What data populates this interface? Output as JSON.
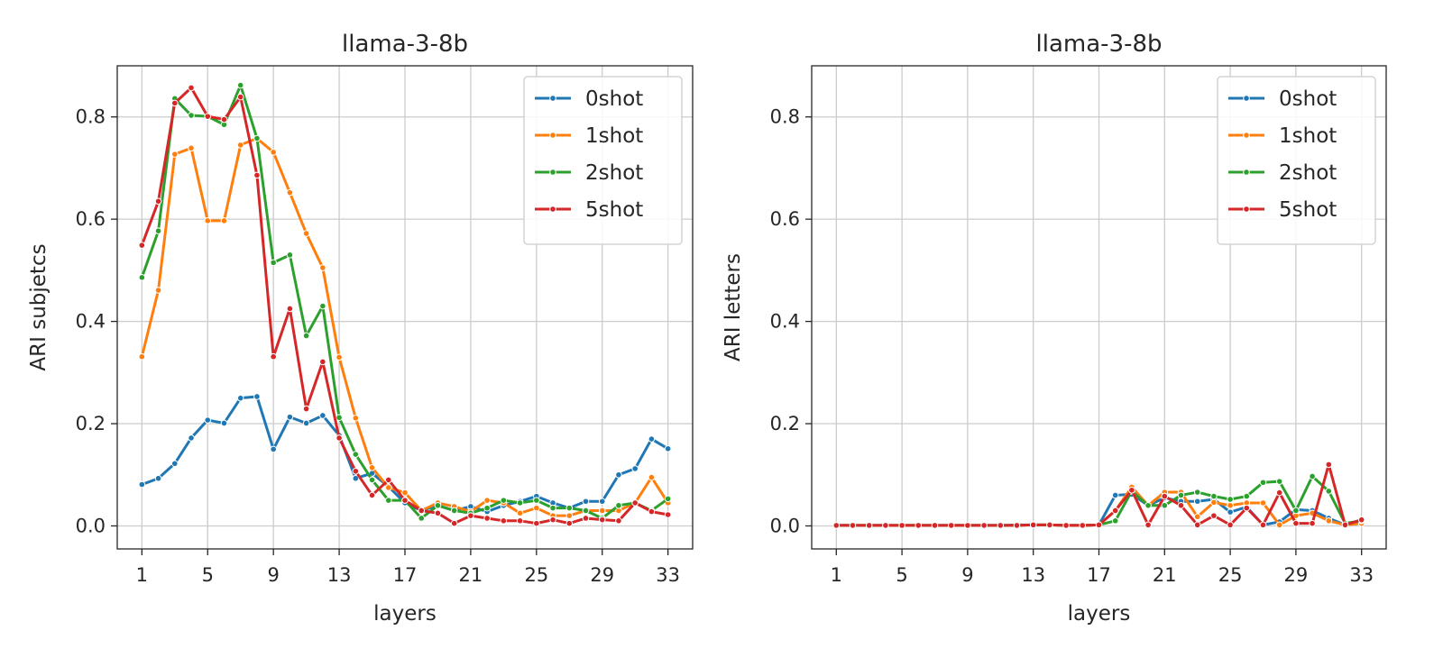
{
  "colors": {
    "0shot": "#1f77b4",
    "1shot": "#ff7f0e",
    "2shot": "#2ca02c",
    "5shot": "#d62728"
  },
  "chart_data": [
    {
      "type": "line",
      "title": "llama-3-8b",
      "xlabel": "layers",
      "ylabel": "ARI subjetcs",
      "xlim": [
        -0.5,
        34.5
      ],
      "ylim": [
        -0.045,
        0.9
      ],
      "xticks": [
        1,
        5,
        9,
        13,
        17,
        21,
        25,
        29,
        33
      ],
      "yticks": [
        "0.0",
        "0.2",
        "0.4",
        "0.6",
        "0.8"
      ],
      "grid": true,
      "legend": "top-right",
      "x": [
        1,
        2,
        3,
        4,
        5,
        6,
        7,
        8,
        9,
        10,
        11,
        12,
        13,
        14,
        15,
        16,
        17,
        18,
        19,
        20,
        21,
        22,
        23,
        24,
        25,
        26,
        27,
        28,
        29,
        30,
        31,
        32,
        33
      ],
      "series": [
        {
          "name": "0shot",
          "values": [
            0.081,
            0.093,
            0.122,
            0.172,
            0.207,
            0.201,
            0.25,
            0.253,
            0.15,
            0.213,
            0.201,
            0.216,
            0.177,
            0.093,
            0.103,
            0.077,
            0.045,
            0.03,
            0.04,
            0.03,
            0.038,
            0.028,
            0.04,
            0.048,
            0.058,
            0.045,
            0.035,
            0.048,
            0.048,
            0.1,
            0.112,
            0.17,
            0.151
          ]
        },
        {
          "name": "1shot",
          "values": [
            0.331,
            0.461,
            0.727,
            0.739,
            0.597,
            0.597,
            0.745,
            0.758,
            0.731,
            0.652,
            0.572,
            0.505,
            0.33,
            0.211,
            0.114,
            0.075,
            0.065,
            0.03,
            0.045,
            0.038,
            0.028,
            0.05,
            0.045,
            0.025,
            0.035,
            0.02,
            0.02,
            0.03,
            0.03,
            0.03,
            0.045,
            0.095,
            0.045
          ]
        },
        {
          "name": "2shot",
          "values": [
            0.486,
            0.577,
            0.836,
            0.803,
            0.801,
            0.785,
            0.862,
            0.758,
            0.515,
            0.53,
            0.372,
            0.43,
            0.212,
            0.14,
            0.09,
            0.05,
            0.05,
            0.015,
            0.04,
            0.03,
            0.025,
            0.035,
            0.05,
            0.045,
            0.05,
            0.035,
            0.035,
            0.03,
            0.015,
            0.04,
            0.045,
            0.03,
            0.053
          ]
        },
        {
          "name": "5shot",
          "values": [
            0.549,
            0.635,
            0.827,
            0.857,
            0.801,
            0.795,
            0.839,
            0.686,
            0.331,
            0.425,
            0.229,
            0.321,
            0.172,
            0.107,
            0.06,
            0.09,
            0.05,
            0.03,
            0.025,
            0.005,
            0.02,
            0.015,
            0.01,
            0.01,
            0.005,
            0.012,
            0.005,
            0.015,
            0.012,
            0.01,
            0.045,
            0.028,
            0.022
          ]
        }
      ]
    },
    {
      "type": "line",
      "title": "llama-3-8b",
      "xlabel": "layers",
      "ylabel": "ARI letters",
      "xlim": [
        -0.5,
        34.5
      ],
      "ylim": [
        -0.045,
        0.9
      ],
      "xticks": [
        1,
        5,
        9,
        13,
        17,
        21,
        25,
        29,
        33
      ],
      "yticks": [
        "0.0",
        "0.2",
        "0.4",
        "0.6",
        "0.8"
      ],
      "grid": true,
      "legend": "top-right",
      "x": [
        1,
        2,
        3,
        4,
        5,
        6,
        7,
        8,
        9,
        10,
        11,
        12,
        13,
        14,
        15,
        16,
        17,
        18,
        19,
        20,
        21,
        22,
        23,
        24,
        25,
        26,
        27,
        28,
        29,
        30,
        31,
        32,
        33
      ],
      "series": [
        {
          "name": "0shot",
          "values": [
            0.001,
            0.001,
            0.001,
            0.001,
            0.001,
            0.001,
            0.001,
            0.001,
            0.001,
            0.001,
            0.001,
            0.002,
            0.002,
            0.002,
            0.001,
            0.001,
            0.002,
            0.06,
            0.062,
            0.04,
            0.055,
            0.048,
            0.048,
            0.052,
            0.027,
            0.037,
            0.002,
            0.008,
            0.032,
            0.03,
            0.015,
            0.002,
            0.012
          ]
        },
        {
          "name": "1shot",
          "values": [
            0.001,
            0.001,
            0.001,
            0.001,
            0.001,
            0.001,
            0.001,
            0.001,
            0.001,
            0.001,
            0.001,
            0.001,
            0.002,
            0.002,
            0.001,
            0.001,
            0.002,
            0.03,
            0.076,
            0.04,
            0.066,
            0.066,
            0.018,
            0.046,
            0.04,
            0.045,
            0.045,
            0.002,
            0.02,
            0.025,
            0.01,
            0.002,
            0.005
          ]
        },
        {
          "name": "2shot",
          "values": [
            0.001,
            0.001,
            0.001,
            0.001,
            0.001,
            0.001,
            0.001,
            0.001,
            0.001,
            0.001,
            0.001,
            0.001,
            0.002,
            0.002,
            0.001,
            0.001,
            0.002,
            0.01,
            0.068,
            0.04,
            0.04,
            0.06,
            0.066,
            0.058,
            0.052,
            0.058,
            0.085,
            0.087,
            0.03,
            0.097,
            0.068,
            0.005,
            0.01
          ]
        },
        {
          "name": "5shot",
          "values": [
            0.001,
            0.001,
            0.001,
            0.001,
            0.001,
            0.001,
            0.001,
            0.001,
            0.001,
            0.001,
            0.001,
            0.001,
            0.002,
            0.002,
            0.001,
            0.001,
            0.002,
            0.03,
            0.07,
            0.002,
            0.058,
            0.04,
            0.002,
            0.02,
            0.002,
            0.035,
            0.002,
            0.065,
            0.005,
            0.005,
            0.12,
            0.002,
            0.012
          ]
        }
      ]
    }
  ]
}
